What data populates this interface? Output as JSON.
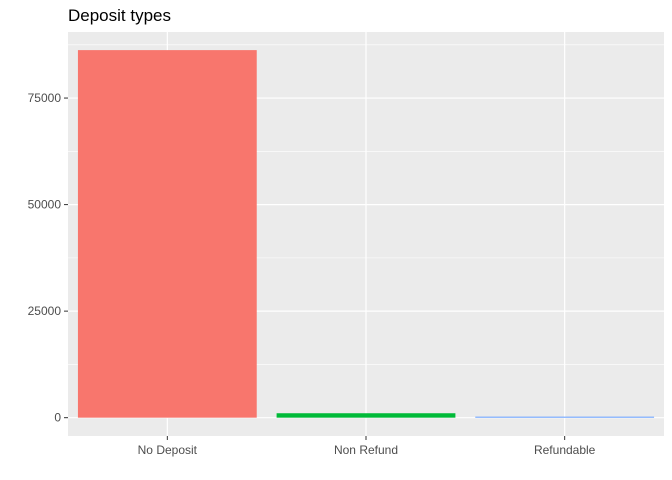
{
  "chart_data": {
    "type": "bar",
    "title": "Deposit types",
    "xlabel": "",
    "ylabel": "",
    "categories": [
      "No Deposit",
      "Non Refund",
      "Refundable"
    ],
    "values": [
      86250,
      1040,
      160
    ],
    "colors": [
      "#F8766D",
      "#00BA38",
      "#619CFF"
    ],
    "ylim": [
      -4300,
      90500
    ],
    "yticks": [
      0,
      25000,
      50000,
      75000
    ],
    "ytick_labels": [
      "0",
      "25000",
      "50000",
      "75000"
    ],
    "grid": true,
    "legend": "none",
    "panel_background": "#EBEBEB",
    "grid_color": "#FFFFFF"
  }
}
